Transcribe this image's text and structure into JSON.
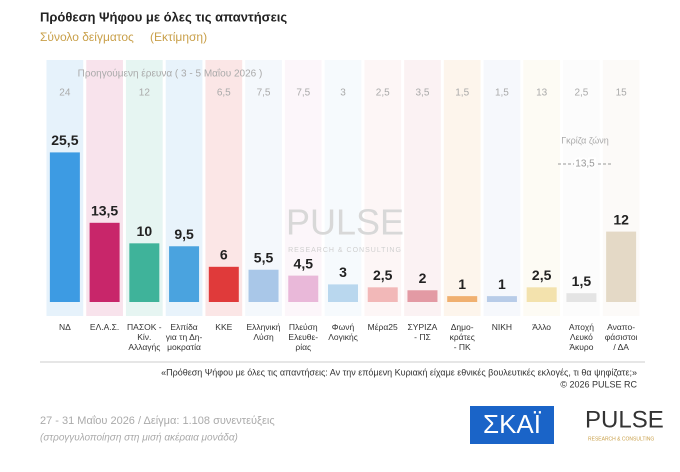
{
  "chart_data": {
    "type": "bar",
    "title": "Πρόθεση Ψήφου με όλες τις απαντήσεις",
    "subtitle": "Σύνολο δείγματος",
    "subtitle_note": "(Εκτίμηση)",
    "categories": [
      "ΝΔ",
      "ΕΛ.Α.Σ.",
      "ΠΑΣΟΚ - Κίν.\nΑλλαγής",
      "Ελπίδα\nγια τη Δη-\nμοκρατία",
      "ΚΚΕ",
      "Ελληνική\nΛύση",
      "Πλεύση\nΕλευθε-\nρίας",
      "Φωνή\nΛογικής",
      "Μέρα25",
      "ΣΥΡΙΖΑ\n- ΠΣ",
      "Δημο-\nκράτες\n- ΠΚ",
      "ΝΙΚΗ",
      "Άλλο",
      "Αποχή\nΛευκό\nΆκυρο",
      "Αναπο-\nφάσιστοι\n/ ΔΑ"
    ],
    "values": [
      25.5,
      13.5,
      10,
      9.5,
      6,
      5.5,
      4.5,
      3,
      2.5,
      2,
      1,
      1,
      2.5,
      1.5,
      12
    ],
    "value_labels": [
      "25,5",
      "13,5",
      "10",
      "9,5",
      "6",
      "5,5",
      "4,5",
      "3",
      "2,5",
      "2",
      "1",
      "1",
      "2,5",
      "1,5",
      "12"
    ],
    "colors": [
      "#3d9be3",
      "#c8266a",
      "#3fb39a",
      "#4aa3df",
      "#e03a3a",
      "#a9c7e8",
      "#e9b8d9",
      "#b9d7ee",
      "#f2b8b8",
      "#e39aa4",
      "#f0b070",
      "#b8cce8",
      "#f3e2ad",
      "#e4e4e4",
      "#e4d9c6"
    ],
    "ylim": [
      0,
      30
    ],
    "previous": {
      "label": "Προηγούμενη έρευνα ( 3 - 5 Μαΐου 2026 )",
      "values": [
        24,
        null,
        12,
        null,
        6.5,
        7.5,
        7.5,
        3,
        2.5,
        3.5,
        1.5,
        1.5,
        13,
        2.5,
        15
      ],
      "value_labels": [
        "24",
        null,
        "12",
        null,
        "6,5",
        "7,5",
        "7,5",
        "3",
        "2,5",
        "3,5",
        "1,5",
        "1,5",
        "13",
        "2,5",
        "15"
      ]
    },
    "annotation": {
      "label": "Γκρίζα ζώνη",
      "value_label": "13,5"
    },
    "watermark": {
      "name": "PULSE",
      "sub": "RESEARCH & CONSULTING"
    },
    "question": "«Πρόθεση Ψήφου με όλες τις απαντήσεις: Αν την επόμενη Κυριακή είχαμε εθνικές βουλευτικές εκλογές, τι θα ψηφίζατε;»",
    "copyright": "© 2026 PULSE RC",
    "footer": "27 - 31 Μαΐου 2026 / Δείγμα: 1.108 συνεντεύξεις",
    "footer_note": "(στρογγυλοποίηση στη μισή ακέραια μονάδα)",
    "logos": {
      "skai": "ΣΚΑΪ",
      "pulse": "PULSE",
      "pulse_sub": "RESEARCH & CONSULTING"
    }
  }
}
